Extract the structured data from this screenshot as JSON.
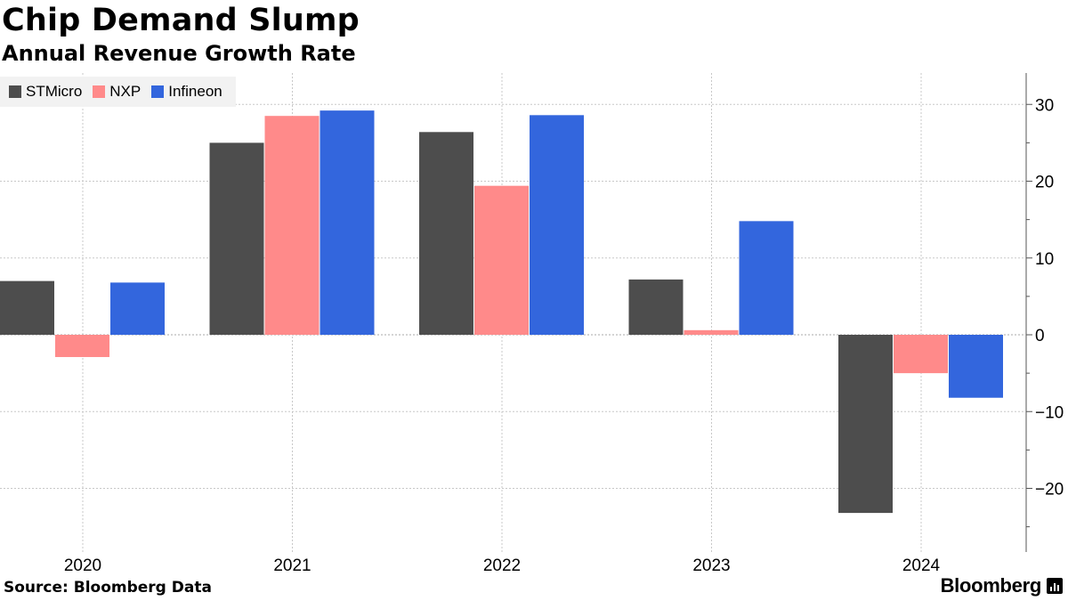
{
  "header": {
    "title": "Chip Demand Slump",
    "subtitle": "Annual Revenue Growth Rate"
  },
  "footer": {
    "source": "Source: Bloomberg Data",
    "brand": "Bloomberg"
  },
  "colors": {
    "STMicro": "#4d4d4d",
    "NXP": "#ff8a8a",
    "Infineon": "#3366dd",
    "grid": "#c8c8c8",
    "legend_bg": "#f2f2f2"
  },
  "chart_data": {
    "type": "bar",
    "title": "Chip Demand Slump",
    "subtitle": "Annual Revenue Growth Rate",
    "xlabel": "",
    "ylabel": "",
    "categories": [
      "2020",
      "2021",
      "2022",
      "2023",
      "2024"
    ],
    "series": [
      {
        "name": "STMicro",
        "values": [
          7.0,
          25.0,
          26.4,
          7.2,
          -23.2
        ]
      },
      {
        "name": "NXP",
        "values": [
          -2.9,
          28.5,
          19.4,
          0.6,
          -5.0
        ]
      },
      {
        "name": "Infineon",
        "values": [
          6.8,
          29.2,
          28.6,
          14.8,
          -8.2
        ]
      }
    ],
    "ylim": [
      -28,
      34
    ],
    "yticks": [
      30,
      20,
      10,
      0,
      -10,
      -20
    ],
    "ytick_labels": [
      "30",
      "20",
      "10",
      "0",
      "−10",
      "−20"
    ],
    "y_axis_side": "right",
    "grid": true,
    "legend_position": "top-left"
  }
}
